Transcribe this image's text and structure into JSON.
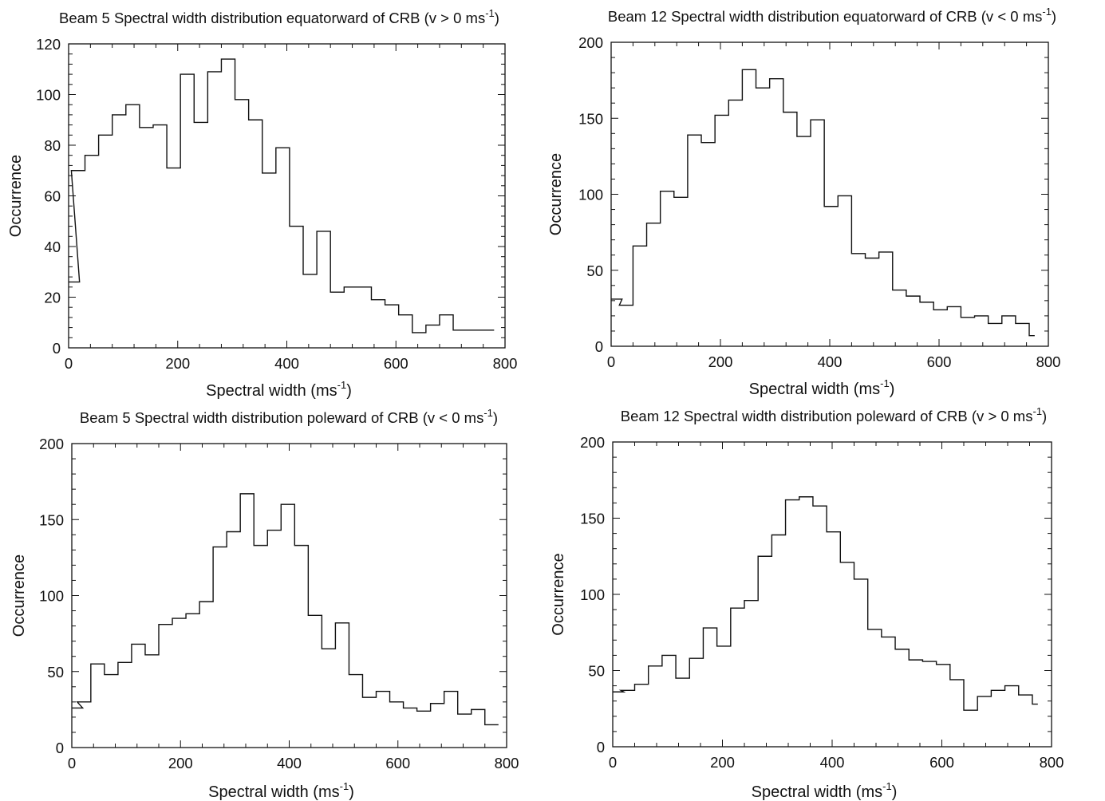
{
  "chart_data": [
    {
      "type": "bar",
      "title": "Beam 5 Spectral width distribution equatorward of CRB (v > 0 ms",
      "title_sup": "-1",
      "title_end": ")",
      "xlabel": "Spectral width (ms",
      "xlabel_sup": "-1",
      "xlabel_end": ")",
      "ylabel": "Occurrence",
      "xlim": [
        0,
        800
      ],
      "ylim": [
        0,
        120
      ],
      "xticks": [
        "0",
        "200",
        "400",
        "600",
        "800"
      ],
      "yticks": [
        "0",
        "20",
        "40",
        "60",
        "80",
        "100",
        "120"
      ],
      "bin_width": 25,
      "x": [
        -5,
        5,
        30,
        55,
        80,
        105,
        130,
        155,
        180,
        205,
        230,
        255,
        280,
        305,
        330,
        355,
        380,
        405,
        430,
        455,
        480,
        505,
        530,
        555,
        580,
        605,
        630,
        655,
        680,
        705,
        730,
        755
      ],
      "values": [
        26,
        70,
        76,
        84,
        92,
        96,
        87,
        88,
        71,
        108,
        89,
        109,
        114,
        98,
        90,
        69,
        79,
        48,
        29,
        46,
        22,
        24,
        24,
        19,
        17,
        13,
        6,
        9,
        13,
        7,
        7,
        7
      ]
    },
    {
      "type": "bar",
      "title": "Beam 12 Spectral width distribution equatorward of CRB (v < 0 ms",
      "title_sup": "-1",
      "title_end": ")",
      "xlabel": "Spectral width (ms",
      "xlabel_sup": "-1",
      "xlabel_end": ")",
      "ylabel": "Occurrence",
      "xlim": [
        0,
        800
      ],
      "ylim": [
        0,
        200
      ],
      "xticks": [
        "0",
        "200",
        "400",
        "600",
        "800"
      ],
      "yticks": [
        "0",
        "50",
        "100",
        "150",
        "200"
      ],
      "bin_width": 25,
      "x": [
        -5,
        15,
        40,
        65,
        90,
        115,
        140,
        165,
        190,
        215,
        240,
        265,
        290,
        315,
        340,
        365,
        390,
        415,
        440,
        465,
        490,
        515,
        540,
        565,
        590,
        615,
        640,
        665,
        690,
        715,
        740
      ],
      "values": [
        31,
        27,
        66,
        81,
        102,
        98,
        139,
        134,
        152,
        162,
        182,
        170,
        176,
        154,
        138,
        149,
        92,
        99,
        61,
        58,
        62,
        37,
        33,
        29,
        24,
        26,
        19,
        20,
        15,
        20,
        15
      ],
      "last_bar": [
        765,
        7
      ]
    },
    {
      "type": "bar",
      "title": "Beam 5 Spectral width distribution poleward of CRB (v < 0 ms",
      "title_sup": "-1",
      "title_end": ")",
      "xlabel": "Spectral width (ms",
      "xlabel_sup": "-1",
      "xlabel_end": ")",
      "ylabel": "Occurrence",
      "xlim": [
        0,
        800
      ],
      "ylim": [
        0,
        200
      ],
      "xticks": [
        "0",
        "200",
        "400",
        "600",
        "800"
      ],
      "yticks": [
        "0",
        "50",
        "100",
        "150",
        "200"
      ],
      "bin_width": 25,
      "x": [
        -5,
        10,
        35,
        60,
        85,
        110,
        135,
        160,
        185,
        210,
        235,
        260,
        285,
        310,
        335,
        360,
        385,
        410,
        435,
        460,
        485,
        510,
        535,
        560,
        585,
        610,
        635,
        660,
        685,
        710,
        735,
        760
      ],
      "values": [
        26,
        30,
        55,
        48,
        56,
        68,
        61,
        81,
        85,
        88,
        96,
        132,
        142,
        167,
        133,
        143,
        160,
        133,
        87,
        65,
        82,
        48,
        33,
        37,
        30,
        26,
        24,
        29,
        37,
        22,
        25,
        15
      ]
    },
    {
      "type": "bar",
      "title": "Beam 12 Spectral width distribution poleward of CRB (v > 0 ms",
      "title_sup": "-1",
      "title_end": ")",
      "xlabel": "Spectral width (ms",
      "xlabel_sup": "-1",
      "xlabel_end": ")",
      "ylabel": "Occurrence",
      "xlim": [
        0,
        800
      ],
      "ylim": [
        0,
        200
      ],
      "xticks": [
        "0",
        "200",
        "400",
        "600",
        "800"
      ],
      "yticks": [
        "0",
        "50",
        "100",
        "150",
        "200"
      ],
      "bin_width": 25,
      "x": [
        -5,
        15,
        40,
        65,
        90,
        115,
        140,
        165,
        190,
        215,
        240,
        265,
        290,
        315,
        340,
        365,
        390,
        415,
        440,
        465,
        490,
        515,
        540,
        565,
        590,
        615,
        640,
        665,
        690,
        715,
        740
      ],
      "values": [
        36,
        37,
        41,
        53,
        60,
        45,
        58,
        78,
        66,
        91,
        96,
        125,
        139,
        162,
        164,
        158,
        141,
        121,
        110,
        77,
        72,
        64,
        57,
        56,
        54,
        44,
        24,
        33,
        37,
        40,
        34
      ],
      "last_bar": [
        765,
        28
      ]
    }
  ]
}
